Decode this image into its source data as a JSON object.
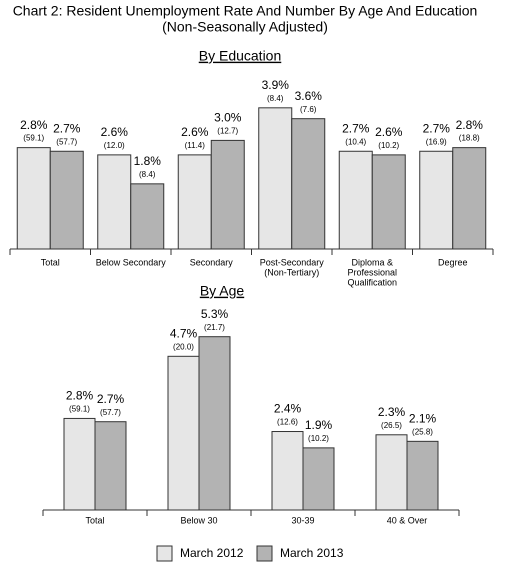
{
  "title": "Chart 2: Resident Unemployment Rate And Number By Age And Education",
  "subtitle": "(Non-Seasonally Adjusted)",
  "chart_data": [
    {
      "type": "bar",
      "title": "By Education",
      "categories": [
        "Total",
        "Below Secondary",
        "Secondary",
        [
          "Post-Secondary",
          "(Non-Tertiary)"
        ],
        [
          "Diploma &",
          "Professional",
          "Qualification"
        ],
        "Degree"
      ],
      "series": [
        {
          "color": "#e6e6e6",
          "values": [
            2.8,
            2.6,
            2.6,
            3.9,
            2.7,
            2.7
          ],
          "value_labels": [
            "2.8%",
            "2.6%",
            "2.6%",
            "3.9%",
            "2.7%",
            "2.7%"
          ],
          "numbers": [
            59.1,
            12.0,
            11.4,
            8.4,
            10.4,
            16.9
          ],
          "number_labels": [
            "(59.1)",
            "(12.0)",
            "(11.4)",
            "(8.4)",
            "(10.4)",
            "(16.9)"
          ]
        },
        {
          "color": "#b3b3b3",
          "values": [
            2.7,
            1.8,
            3.0,
            3.6,
            2.6,
            2.8
          ],
          "value_labels": [
            "2.7%",
            "1.8%",
            "3.0%",
            "3.6%",
            "2.6%",
            "2.8%"
          ],
          "numbers": [
            57.7,
            8.4,
            12.7,
            7.6,
            10.2,
            18.8
          ],
          "number_labels": [
            "(57.7)",
            "(8.4)",
            "(12.7)",
            "(7.6)",
            "(10.2)",
            "(18.8)"
          ]
        }
      ]
    },
    {
      "type": "bar",
      "title": "By Age",
      "categories": [
        "Total",
        "Below 30",
        "30-39",
        "40 & Over"
      ],
      "series": [
        {
          "name": "March 2012",
          "color": "#e6e6e6",
          "values": [
            2.8,
            4.7,
            2.4,
            2.3
          ],
          "value_labels": [
            "2.8%",
            "4.7%",
            "2.4%",
            "2.3%"
          ],
          "numbers": [
            59.1,
            20.0,
            12.6,
            26.5
          ],
          "number_labels": [
            "(59.1)",
            "(20.0)",
            "(12.6)",
            "(26.5)"
          ]
        },
        {
          "name": "March 2013",
          "color": "#b3b3b3",
          "values": [
            2.7,
            5.3,
            1.9,
            2.1
          ],
          "value_labels": [
            "2.7%",
            "5.3%",
            "1.9%",
            "2.1%"
          ],
          "numbers": [
            57.7,
            21.7,
            10.2,
            25.8
          ],
          "number_labels": [
            "(57.7)",
            "(21.7)",
            "(10.2)",
            "(25.8)"
          ]
        }
      ]
    }
  ]
}
